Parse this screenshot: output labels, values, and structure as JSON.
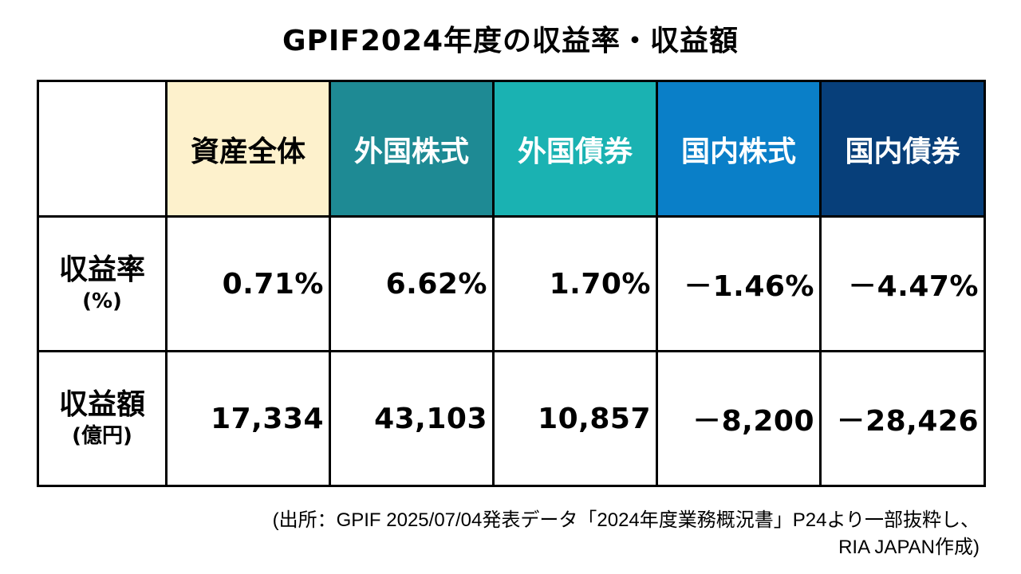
{
  "title": "GPIF2024年度の収益率・収益額",
  "table": {
    "headers": [
      {
        "label": "資産全体",
        "bg": "#fdf1cc",
        "fg": "#000000"
      },
      {
        "label": "外国株式",
        "bg": "#1e8a94",
        "fg": "#ffffff"
      },
      {
        "label": "外国債券",
        "bg": "#1ab2b2",
        "fg": "#ffffff"
      },
      {
        "label": "国内株式",
        "bg": "#0a7fc8",
        "fg": "#ffffff"
      },
      {
        "label": "国内債券",
        "bg": "#073f7a",
        "fg": "#ffffff"
      }
    ],
    "rows": [
      {
        "label": "収益率",
        "unit": "(%)",
        "values": [
          "0.71%",
          "6.62%",
          "1.70%",
          "－1.46%",
          "－4.47%"
        ]
      },
      {
        "label": "収益額",
        "unit": "(億円)",
        "values": [
          "17,334",
          "43,103",
          "10,857",
          "－8,200",
          "－28,426"
        ]
      }
    ]
  },
  "source": {
    "line1": "(出所：GPIF 2025/07/04発表データ「2024年度業務概況書」P24より一部抜粋し、",
    "line2": "RIA JAPAN作成)"
  }
}
